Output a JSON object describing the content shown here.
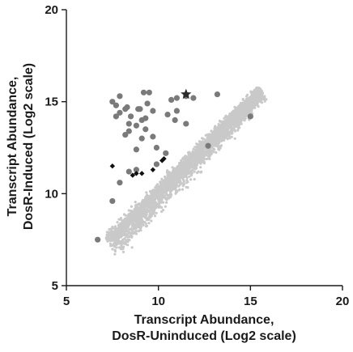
{
  "chart_data": {
    "type": "scatter",
    "title": "",
    "xlabel_lines": [
      "Transcript Abundance,",
      "DosR-Uninduced (Log2 scale)"
    ],
    "ylabel_lines": [
      "Transcript Abundance,",
      "DosR-Induced (Log2 scale)"
    ],
    "xlim": [
      5,
      20
    ],
    "ylim": [
      5,
      20
    ],
    "xticks": [
      "5",
      "10",
      "15",
      "20"
    ],
    "yticks": [
      "5",
      "10",
      "15",
      "20"
    ],
    "grid": false,
    "legend": "none",
    "colors": {
      "background_cloud": "#c9c9c9",
      "circle_points": "#7a7a7a",
      "diamond_points": "#111111",
      "star_point": "#2a2a2a",
      "axes": "#1a1a1a"
    },
    "series": [
      {
        "marker": "circle",
        "points": [
          [
            7.5,
            15.0
          ],
          [
            7.7,
            14.8
          ],
          [
            7.9,
            15.3
          ],
          [
            7.7,
            14.2
          ],
          [
            7.9,
            14.4
          ],
          [
            8.3,
            14.7
          ],
          [
            8.2,
            14.6
          ],
          [
            8.5,
            14.2
          ],
          [
            8.4,
            13.8
          ],
          [
            8.2,
            13.2
          ],
          [
            8.4,
            13.4
          ],
          [
            8.8,
            13.7
          ],
          [
            8.9,
            14.6
          ],
          [
            9.2,
            15.5
          ],
          [
            9.5,
            15.5
          ],
          [
            9.0,
            14.6
          ],
          [
            9.1,
            14.0
          ],
          [
            9.4,
            14.9
          ],
          [
            9.3,
            14.1
          ],
          [
            9.7,
            14.5
          ],
          [
            9.3,
            13.5
          ],
          [
            9.1,
            13.0
          ],
          [
            9.7,
            13.1
          ],
          [
            8.8,
            12.4
          ],
          [
            9.9,
            12.5
          ],
          [
            10.4,
            12.2
          ],
          [
            10.7,
            15.1
          ],
          [
            11.0,
            15.2
          ],
          [
            10.5,
            14.3
          ],
          [
            11.0,
            14.5
          ],
          [
            10.9,
            14.0
          ],
          [
            11.5,
            13.8
          ],
          [
            9.9,
            11.6
          ],
          [
            8.8,
            11.3
          ],
          [
            8.4,
            11.2
          ],
          [
            7.9,
            10.6
          ],
          [
            7.5,
            9.6
          ],
          [
            6.7,
            7.5
          ],
          [
            11.9,
            15.2
          ],
          [
            13.2,
            15.4
          ],
          [
            12.7,
            12.6
          ],
          [
            15.0,
            14.2
          ],
          [
            11.5,
            15.3
          ]
        ]
      },
      {
        "marker": "diamond",
        "points": [
          [
            7.5,
            11.5
          ],
          [
            8.6,
            11.0
          ],
          [
            8.8,
            11.1
          ],
          [
            9.1,
            11.1
          ],
          [
            9.7,
            11.3
          ],
          [
            10.2,
            11.8
          ],
          [
            10.3,
            11.9
          ]
        ]
      },
      {
        "marker": "star",
        "points": [
          [
            11.5,
            15.4
          ]
        ]
      }
    ],
    "background_cloud": {
      "description_points": "dense band of unchanged transcripts near the identity line",
      "x_range": [
        7.3,
        15.6
      ],
      "relation": "y ≈ x"
    }
  }
}
